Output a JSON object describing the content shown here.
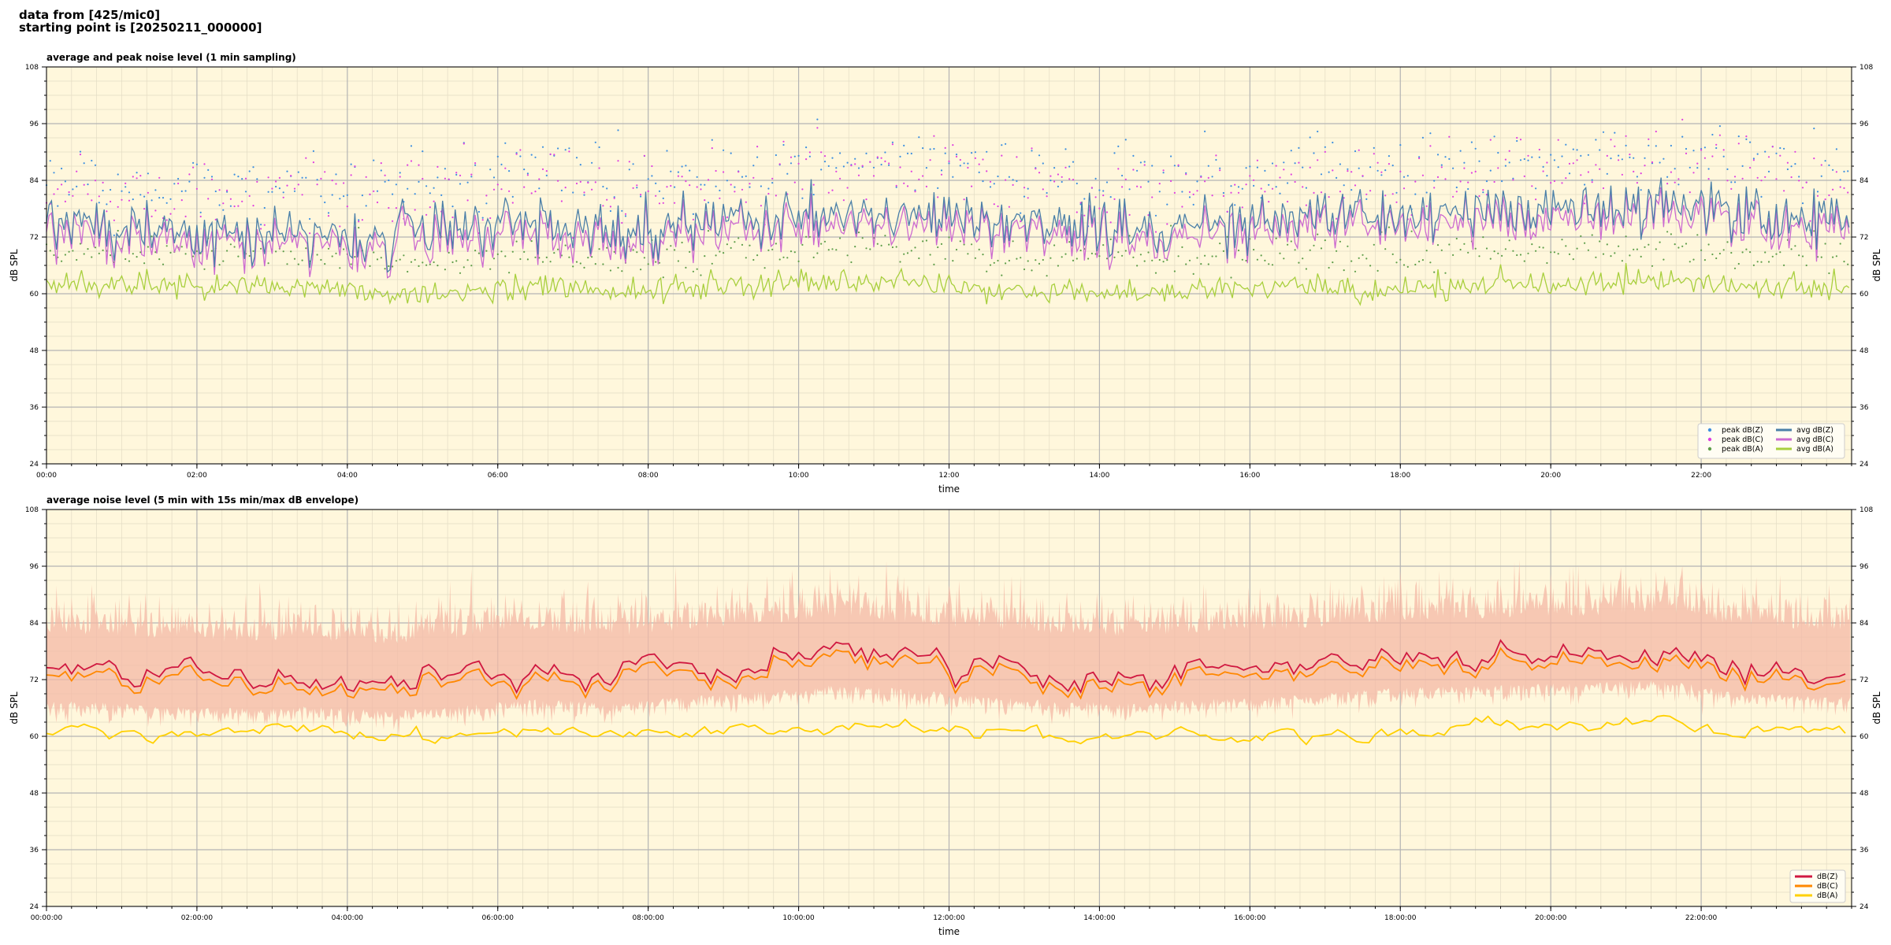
{
  "header": {
    "line1": "data from [425/mic0]",
    "line2": "starting point is [20250211_000000]"
  },
  "colors": {
    "plot_bg": "#fff7dc",
    "major_grid": "#b4b4b4",
    "minor_grid": "#e3dcc4",
    "peak_z": "#3d8fe0",
    "peak_c": "#e040e0",
    "peak_a": "#5f9e4a",
    "avg_z": "#4a7fa8",
    "avg_c": "#cc6ad0",
    "avg_a": "#a8cf3d",
    "db_z": "#d01840",
    "db_c": "#ff8800",
    "db_a": "#ffd000",
    "envelope": "#f4b8a6"
  },
  "chart_data": [
    {
      "type": "scatter+line",
      "title": "average and peak noise level (1 min sampling)",
      "xlabel": "time",
      "ylabel": "dB SPL",
      "ylim": [
        24,
        108
      ],
      "yticks": [
        24,
        36,
        48,
        60,
        72,
        84,
        96,
        108
      ],
      "xlim_hours": [
        0,
        24
      ],
      "xticks": [
        "00:00",
        "02:00",
        "04:00",
        "06:00",
        "08:00",
        "10:00",
        "12:00",
        "14:00",
        "16:00",
        "18:00",
        "20:00",
        "22:00"
      ],
      "grid": true,
      "legend_position": "bottom-right",
      "sampling_minutes": 1,
      "series": [
        {
          "name": "peak dB(Z)",
          "kind": "points",
          "approx_mean": 86,
          "approx_range": [
            78,
            93
          ]
        },
        {
          "name": "peak dB(C)",
          "kind": "points",
          "approx_mean": 84,
          "approx_range": [
            76,
            92
          ]
        },
        {
          "name": "peak dB(A)",
          "kind": "points",
          "approx_mean": 66,
          "approx_range": [
            60,
            72
          ]
        },
        {
          "name": "avg dB(Z)",
          "kind": "line",
          "hourly": [
            74,
            73,
            72,
            73,
            73,
            74,
            75,
            74,
            75,
            76,
            78,
            77,
            76,
            75,
            74,
            75,
            75,
            77,
            77,
            78,
            78,
            79,
            77,
            76
          ]
        },
        {
          "name": "avg dB(C)",
          "kind": "line",
          "hourly": [
            72,
            71,
            70,
            71,
            71,
            72,
            73,
            72,
            73,
            74,
            76,
            75,
            74,
            73,
            72,
            73,
            73,
            75,
            75,
            76,
            76,
            77,
            75,
            74
          ]
        },
        {
          "name": "avg dB(A)",
          "kind": "line",
          "hourly": [
            61.5,
            61.5,
            61.5,
            62,
            59.5,
            60,
            61,
            60.5,
            61,
            61.5,
            62.5,
            62,
            61,
            60,
            60,
            60.5,
            61,
            60.5,
            61.5,
            62,
            62,
            63,
            61.5,
            61
          ]
        }
      ],
      "legend": [
        "peak dB(Z)",
        "peak dB(C)",
        "peak dB(A)",
        "avg dB(Z)",
        "avg dB(C)",
        "avg dB(A)"
      ]
    },
    {
      "type": "line+envelope",
      "title": "average noise level (5 min with 15s min/max dB envelope)",
      "xlabel": "time",
      "ylabel": "dB SPL",
      "ylim": [
        24,
        108
      ],
      "yticks": [
        24,
        36,
        48,
        60,
        72,
        84,
        96,
        108
      ],
      "xlim_hours": [
        0,
        24
      ],
      "xticks": [
        "00:00:00",
        "02:00:00",
        "04:00:00",
        "06:00:00",
        "08:00:00",
        "10:00:00",
        "12:00:00",
        "14:00:00",
        "16:00:00",
        "18:00:00",
        "20:00:00",
        "22:00:00"
      ],
      "grid": true,
      "legend_position": "bottom-right",
      "averaging_minutes": 5,
      "envelope": {
        "lower_approx": 66,
        "upper_approx": 88
      },
      "series": [
        {
          "name": "dB(Z)",
          "hourly": [
            73.5,
            72.5,
            72,
            72.5,
            71.5,
            72.5,
            74,
            73,
            74.5,
            75.5,
            77,
            76,
            74.5,
            73.5,
            73,
            74,
            74.5,
            76,
            76.5,
            77,
            77.5,
            78,
            75.5,
            74.5
          ]
        },
        {
          "name": "dB(C)",
          "hourly": [
            72,
            71,
            70.5,
            71,
            70,
            71,
            72.5,
            71.5,
            73,
            74,
            75.5,
            74.5,
            73,
            72,
            71.5,
            72.5,
            73,
            74.5,
            75,
            75.5,
            76,
            76.5,
            74,
            73
          ]
        },
        {
          "name": "dB(A)",
          "hourly": [
            61,
            61,
            61.5,
            62,
            59.5,
            60,
            61.5,
            60.5,
            61,
            61.5,
            62.5,
            62,
            61,
            60,
            60,
            60.5,
            61,
            60.5,
            61.5,
            62,
            62,
            63.5,
            61,
            61
          ]
        }
      ],
      "legend": [
        "dB(Z)",
        "dB(C)",
        "dB(A)"
      ]
    }
  ]
}
